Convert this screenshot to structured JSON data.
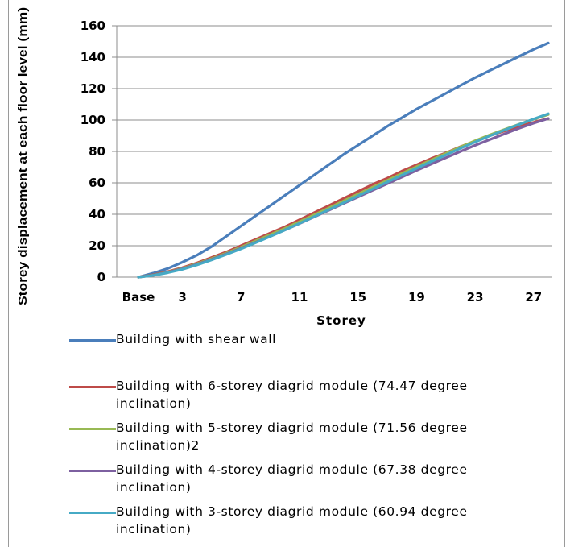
{
  "chart_data": {
    "type": "line",
    "xlabel": "Storey",
    "ylabel": "Storey displacement at each floor level (mm)",
    "categories": [
      "Base",
      "1",
      "2",
      "3",
      "4",
      "5",
      "6",
      "7",
      "8",
      "9",
      "10",
      "11",
      "12",
      "13",
      "14",
      "15",
      "16",
      "17",
      "18",
      "19",
      "20",
      "21",
      "22",
      "23",
      "24",
      "25",
      "26",
      "27",
      "28"
    ],
    "x_tick_labels": [
      "Base",
      "3",
      "7",
      "11",
      "15",
      "19",
      "23",
      "27"
    ],
    "x_tick_indices": [
      0,
      3,
      7,
      11,
      15,
      19,
      23,
      27
    ],
    "ylim": [
      0,
      160
    ],
    "y_ticks": [
      0,
      20,
      40,
      60,
      80,
      100,
      120,
      140,
      160
    ],
    "grid": true,
    "legend_position": "bottom",
    "series": [
      {
        "name": "Building with shear wall",
        "color": "#4a7ebb",
        "values": [
          0,
          2.5,
          5.5,
          9.5,
          14,
          19.5,
          26,
          32.5,
          39,
          45.5,
          52,
          58.5,
          65,
          71.5,
          78,
          84,
          90,
          96,
          101.5,
          107,
          112,
          117,
          122,
          127,
          131.5,
          136,
          140.5,
          145,
          149
        ]
      },
      {
        "name": "Building with 6-storey diagrid module (74.47 degree inclination)",
        "color": "#be4b48",
        "values": [
          0,
          1.5,
          3.5,
          6,
          9,
          12.5,
          16,
          20,
          24,
          28,
          32,
          36.5,
          41,
          45.5,
          50,
          54.5,
          59,
          63,
          67.5,
          71.5,
          75.5,
          79,
          83,
          86.5,
          90,
          93,
          96,
          98.5,
          101
        ]
      },
      {
        "name": "Building with 5-storey diagrid module (71.56 degree inclination)2",
        "color": "#98b954",
        "values": [
          0,
          1.3,
          3.2,
          5.6,
          8.5,
          11.8,
          15.3,
          19,
          23,
          27,
          31,
          35.3,
          39.6,
          44,
          48.4,
          52.8,
          57.2,
          61.6,
          66,
          70.3,
          74.5,
          78.7,
          82.8,
          86.8,
          90.5,
          94,
          97.3,
          100.5,
          103.5
        ]
      },
      {
        "name": "Building with 4-storey diagrid module (67.38 degree inclination)",
        "color": "#7d60a0",
        "values": [
          0,
          1.2,
          3,
          5.3,
          8.1,
          11.3,
          14.7,
          18.3,
          22.1,
          26,
          30,
          34.1,
          38.3,
          42.5,
          46.8,
          51,
          55.3,
          59.5,
          63.7,
          67.9,
          72,
          76,
          80,
          83.9,
          87.6,
          91.2,
          94.7,
          98,
          101
        ]
      },
      {
        "name": "Building with 3-storey diagrid module (60.94 degree inclination)",
        "color": "#46aac5",
        "values": [
          0,
          1.1,
          2.8,
          5,
          7.8,
          11,
          14.4,
          18,
          21.9,
          25.9,
          30,
          34.2,
          38.5,
          42.9,
          47.3,
          51.7,
          56.1,
          60.5,
          64.9,
          69.3,
          73.6,
          77.8,
          82,
          86,
          89.9,
          93.6,
          97.2,
          100.6,
          104
        ]
      }
    ]
  }
}
